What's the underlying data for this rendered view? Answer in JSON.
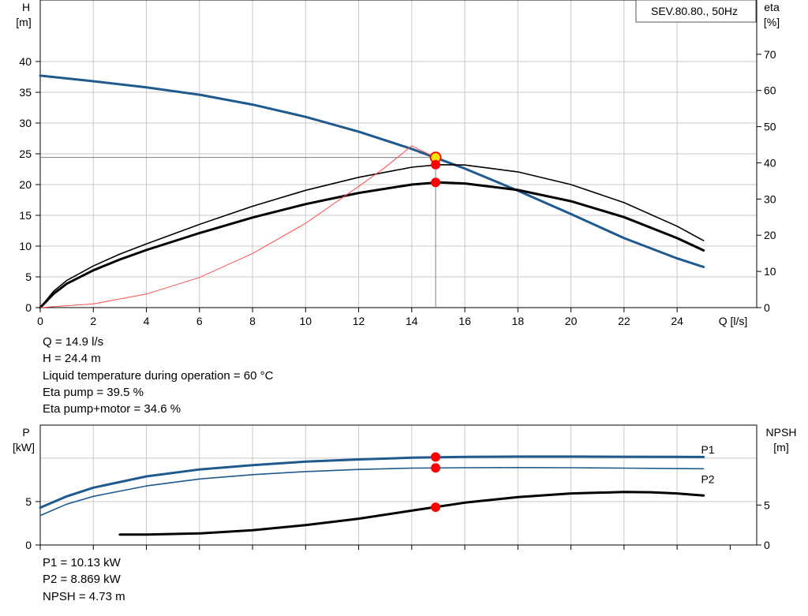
{
  "chart_data": [
    {
      "type": "line",
      "title": "SEV.80.80., 50Hz",
      "xlabel": "Q [l/s]",
      "ylabel_left": [
        "H",
        "[m]"
      ],
      "ylabel_right": [
        "eta",
        "[%]"
      ],
      "xlim": [
        0,
        27
      ],
      "ylim_left": [
        0,
        50
      ],
      "ylim_right": [
        0,
        85
      ],
      "x_ticks": [
        0,
        2,
        4,
        6,
        8,
        10,
        12,
        14,
        16,
        18,
        20,
        22,
        24
      ],
      "y_ticks_left": [
        0,
        5,
        10,
        15,
        20,
        25,
        30,
        35,
        40
      ],
      "y_ticks_right": [
        0,
        10,
        20,
        30,
        40,
        50,
        60,
        70
      ],
      "grid": true,
      "series": [
        {
          "axis": "left",
          "color": "#1f5a8f",
          "width": 3,
          "x": [
            0,
            2,
            4,
            6,
            8,
            10,
            12,
            14,
            16,
            18,
            20,
            22,
            24,
            25
          ],
          "y": [
            37.7,
            36.8,
            35.8,
            34.6,
            33.0,
            31.0,
            28.6,
            25.8,
            22.6,
            19.0,
            15.2,
            11.3,
            8.0,
            6.6
          ]
        },
        {
          "axis": "right",
          "color": "#000000",
          "width": 1.6,
          "x": [
            0,
            0.5,
            1,
            2,
            3,
            4,
            6,
            8,
            10,
            12,
            14,
            15,
            16,
            18,
            20,
            22,
            24,
            25
          ],
          "y": [
            0,
            4.5,
            7.5,
            11.5,
            14.8,
            17.6,
            23.0,
            28.0,
            32.4,
            36.0,
            38.8,
            39.5,
            39.4,
            37.5,
            34.0,
            29.0,
            22.5,
            18.5
          ]
        },
        {
          "axis": "right",
          "color": "#000000",
          "width": 3,
          "x": [
            0,
            0.5,
            1,
            2,
            3,
            4,
            6,
            8,
            10,
            12,
            14,
            15,
            16,
            18,
            20,
            22,
            24,
            25
          ],
          "y": [
            0,
            3.8,
            6.6,
            10.3,
            13.3,
            15.9,
            20.6,
            24.9,
            28.6,
            31.7,
            34.0,
            34.6,
            34.3,
            32.5,
            29.4,
            25.0,
            19.2,
            15.8
          ]
        },
        {
          "axis": "left",
          "color": "#ff4d4d",
          "width": 1,
          "x": [
            0,
            2,
            4,
            6,
            8,
            10,
            12,
            13,
            14,
            14.9
          ],
          "y": [
            0,
            0.6,
            2.2,
            4.9,
            8.8,
            13.7,
            19.7,
            22.8,
            26.3,
            24.4
          ]
        }
      ],
      "reference_lines": {
        "x": 14.9,
        "y": 24.4
      },
      "markers": [
        {
          "axis": "left",
          "x": 14.9,
          "y": 24.4,
          "fill": "#ffe600",
          "stroke": "#ff0000"
        },
        {
          "axis": "right",
          "x": 14.9,
          "y": 39.5,
          "fill": "#ff0000",
          "stroke": "#ff0000"
        },
        {
          "axis": "right",
          "x": 14.9,
          "y": 34.6,
          "fill": "#ff0000",
          "stroke": "#ff0000"
        }
      ]
    },
    {
      "type": "line",
      "ylabel_left": [
        "P",
        "[kW]"
      ],
      "ylabel_right": [
        "NPSH",
        "[m]"
      ],
      "xlim": [
        0,
        27
      ],
      "ylim_left": [
        0,
        13.8
      ],
      "ylim_right": [
        0,
        15
      ],
      "y_ticks_left": [
        0,
        5
      ],
      "y_ticks_right": [
        0,
        5
      ],
      "grid": true,
      "series": [
        {
          "name": "P1",
          "axis": "left",
          "color": "#1f5a8f",
          "width": 3,
          "x": [
            0,
            1,
            2,
            4,
            6,
            8,
            10,
            12,
            14,
            16,
            18,
            20,
            22,
            24,
            25
          ],
          "y": [
            4.3,
            5.6,
            6.6,
            7.9,
            8.7,
            9.2,
            9.6,
            9.85,
            10.05,
            10.15,
            10.18,
            10.18,
            10.16,
            10.14,
            10.13
          ]
        },
        {
          "name": "P2",
          "axis": "left",
          "color": "#1f5a8f",
          "width": 1.6,
          "x": [
            0,
            1,
            2,
            4,
            6,
            8,
            10,
            12,
            14,
            16,
            18,
            20,
            22,
            24,
            25
          ],
          "y": [
            3.4,
            4.7,
            5.6,
            6.8,
            7.6,
            8.1,
            8.45,
            8.7,
            8.85,
            8.9,
            8.92,
            8.9,
            8.85,
            8.8,
            8.78
          ]
        },
        {
          "axis": "right",
          "color": "#000000",
          "width": 3,
          "x": [
            3,
            4,
            6,
            8,
            10,
            12,
            14,
            16,
            18,
            20,
            22,
            23,
            24,
            25
          ],
          "y": [
            1.3,
            1.3,
            1.45,
            1.85,
            2.5,
            3.3,
            4.3,
            5.3,
            6.0,
            6.45,
            6.63,
            6.6,
            6.45,
            6.2
          ]
        }
      ],
      "series_labels": [
        {
          "text": "P1",
          "x": 24.8,
          "y_axis": "left",
          "y": 11.0
        },
        {
          "text": "P2",
          "x": 24.8,
          "y_axis": "left",
          "y": 7.6
        }
      ],
      "markers": [
        {
          "axis": "left",
          "x": 14.9,
          "y": 10.13
        },
        {
          "axis": "left",
          "x": 14.9,
          "y": 8.869
        },
        {
          "axis": "right",
          "x": 14.9,
          "y": 4.73
        }
      ]
    }
  ],
  "info_top": [
    "Q = 14.9 l/s",
    "H = 24.4 m",
    "Liquid temperature during operation = 60 °C",
    "Eta pump = 39.5 %",
    "Eta pump+motor = 34.6 %"
  ],
  "info_bottom": [
    "P1 = 10.13 kW",
    "P2 = 8.869 kW",
    "NPSH = 4.73 m"
  ]
}
